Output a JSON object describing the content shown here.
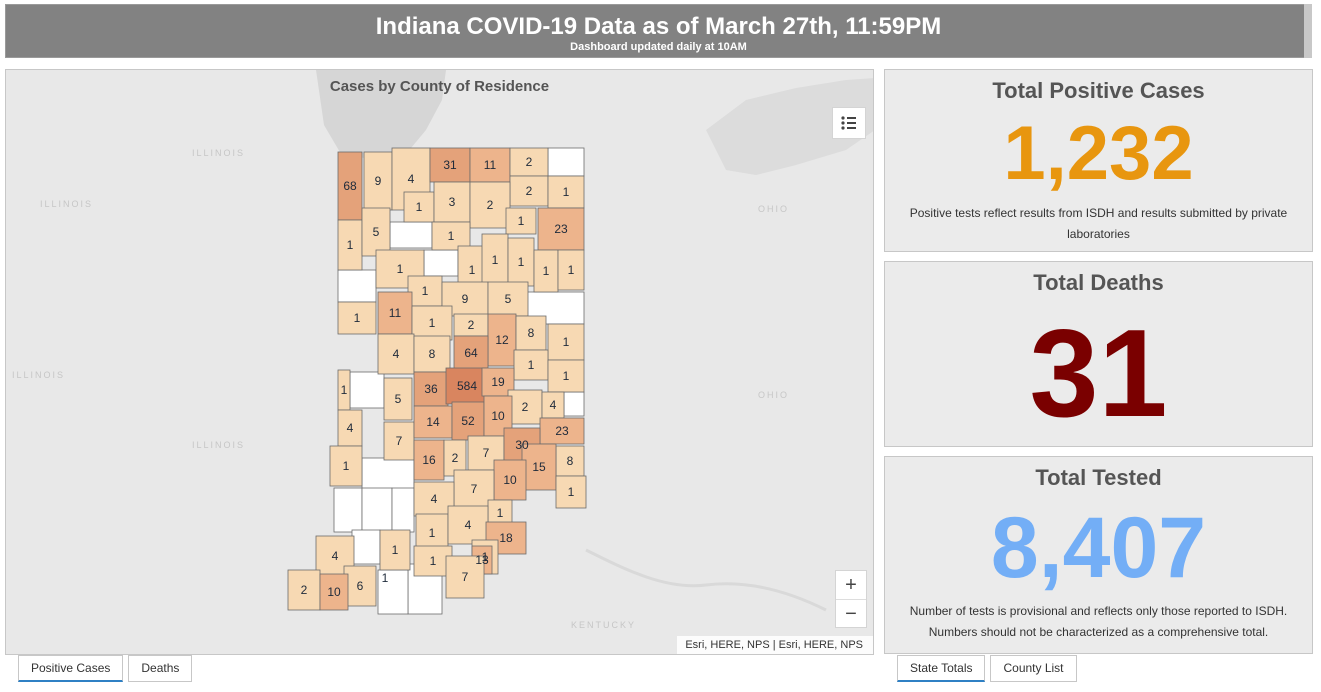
{
  "header": {
    "title": "Indiana COVID-19 Data as of March 27th, 11:59PM",
    "subtitle": "Dashboard updated daily at 10AM"
  },
  "map": {
    "title": "Cases by County of Residence",
    "attribution": "Esri, HERE, NPS | Esri, HERE, NPS",
    "basemap_labels": [
      "ILLINOIS",
      "ILLINOIS",
      "ILLINOIS",
      "ILLINOIS",
      "OHIO",
      "OHIO",
      "KENTUCKY"
    ],
    "legend_icon": "list-legend-icon",
    "zoom_in_label": "+",
    "zoom_out_label": "−",
    "color_scale": [
      "#ffffff",
      "#f7d9b3",
      "#edb48c",
      "#e4a27a",
      "#d9855f"
    ],
    "county_values": [
      "68",
      "9",
      "4",
      "31",
      "11",
      "2",
      "2",
      "1",
      "1",
      "3",
      "2",
      "1",
      "23",
      "1",
      "5",
      "1",
      "1",
      "1",
      "1",
      "1",
      "1",
      "1",
      "1",
      "9",
      "5",
      "1",
      "11",
      "1",
      "2",
      "12",
      "8",
      "1",
      "4",
      "8",
      "64",
      "1",
      "1",
      "1",
      "36",
      "584",
      "19",
      "5",
      "2",
      "4",
      "4",
      "7",
      "14",
      "52",
      "10",
      "23",
      "1",
      "16",
      "2",
      "7",
      "30",
      "8",
      "15",
      "10",
      "1",
      "7",
      "1",
      "4",
      "1",
      "4",
      "1",
      "1",
      "18",
      "4",
      "1",
      "1",
      "13",
      "7",
      "6",
      "2",
      "10"
    ]
  },
  "stats": {
    "positive": {
      "title": "Total Positive Cases",
      "value": "1,232",
      "color": "#e8960f",
      "note": "Positive tests reflect results from ISDH and results submitted by private laboratories"
    },
    "deaths": {
      "title": "Total Deaths",
      "value": "31",
      "color": "#7a0000"
    },
    "tested": {
      "title": "Total Tested",
      "value": "8,407",
      "color": "#73aef6",
      "note": "Number of tests is provisional and reflects only those reported to ISDH. Numbers should not be characterized as a comprehensive total."
    }
  },
  "tabs_left": [
    "Positive Cases",
    "Deaths"
  ],
  "tabs_right": [
    "State Totals",
    "County List"
  ]
}
